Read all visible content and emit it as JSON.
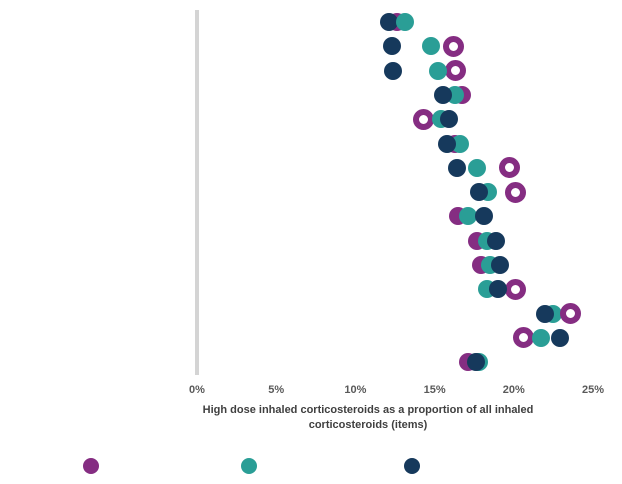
{
  "chart_data": {
    "type": "scatter",
    "variant": "dot-plot-rows",
    "title": "",
    "xlabel_line1": "High dose inhaled corticosteroids as a proportion of all inhaled",
    "xlabel_line2": "corticosteroids (items)",
    "x_axis": {
      "ticks": [
        "0%",
        "5%",
        "10%",
        "15%",
        "20%",
        "25%"
      ],
      "range": [
        0,
        25
      ],
      "zero_gridline": true,
      "gridline_color": "#d4d4d4"
    },
    "y_axis": {
      "row_count": 15,
      "labels_visible": false
    },
    "series_colors": {
      "purple": "#852d82",
      "teal": "#2a9e96",
      "navy": "#16395c"
    },
    "rows": [
      {
        "dots": [
          {
            "series": "purple",
            "value": 12.6,
            "style": "filled"
          },
          {
            "series": "navy",
            "value": 12.1,
            "style": "filled"
          },
          {
            "series": "teal",
            "value": 13.1,
            "style": "filled"
          }
        ]
      },
      {
        "dots": [
          {
            "series": "purple",
            "value": 16.2,
            "style": "ring"
          },
          {
            "series": "teal",
            "value": 14.8,
            "style": "filled"
          },
          {
            "series": "navy",
            "value": 12.3,
            "style": "filled"
          }
        ]
      },
      {
        "dots": [
          {
            "series": "purple",
            "value": 16.3,
            "style": "ring"
          },
          {
            "series": "teal",
            "value": 15.2,
            "style": "filled"
          },
          {
            "series": "navy",
            "value": 12.4,
            "style": "filled"
          }
        ]
      },
      {
        "dots": [
          {
            "series": "purple",
            "value": 16.7,
            "style": "filled"
          },
          {
            "series": "teal",
            "value": 16.3,
            "style": "filled"
          },
          {
            "series": "navy",
            "value": 15.5,
            "style": "filled"
          }
        ]
      },
      {
        "dots": [
          {
            "series": "purple",
            "value": 14.3,
            "style": "ring"
          },
          {
            "series": "teal",
            "value": 15.4,
            "style": "filled"
          },
          {
            "series": "navy",
            "value": 15.9,
            "style": "filled"
          }
        ]
      },
      {
        "dots": [
          {
            "series": "purple",
            "value": 16.3,
            "style": "filled"
          },
          {
            "series": "teal",
            "value": 16.6,
            "style": "filled"
          },
          {
            "series": "navy",
            "value": 15.8,
            "style": "filled"
          }
        ]
      },
      {
        "dots": [
          {
            "series": "purple",
            "value": 19.7,
            "style": "ring"
          },
          {
            "series": "teal",
            "value": 17.7,
            "style": "filled"
          },
          {
            "series": "navy",
            "value": 16.4,
            "style": "filled"
          }
        ]
      },
      {
        "dots": [
          {
            "series": "purple",
            "value": 20.1,
            "style": "ring"
          },
          {
            "series": "teal",
            "value": 18.4,
            "style": "filled"
          },
          {
            "series": "navy",
            "value": 17.8,
            "style": "filled"
          }
        ]
      },
      {
        "dots": [
          {
            "series": "purple",
            "value": 16.5,
            "style": "filled"
          },
          {
            "series": "teal",
            "value": 17.1,
            "style": "filled"
          },
          {
            "series": "navy",
            "value": 18.1,
            "style": "filled"
          }
        ]
      },
      {
        "dots": [
          {
            "series": "purple",
            "value": 17.7,
            "style": "filled"
          },
          {
            "series": "teal",
            "value": 18.3,
            "style": "filled"
          },
          {
            "series": "navy",
            "value": 18.9,
            "style": "filled"
          }
        ]
      },
      {
        "dots": [
          {
            "series": "purple",
            "value": 17.9,
            "style": "filled"
          },
          {
            "series": "teal",
            "value": 18.5,
            "style": "filled"
          },
          {
            "series": "navy",
            "value": 19.1,
            "style": "filled"
          }
        ]
      },
      {
        "dots": [
          {
            "series": "purple",
            "value": 20.1,
            "style": "ring"
          },
          {
            "series": "teal",
            "value": 18.3,
            "style": "filled"
          },
          {
            "series": "navy",
            "value": 19.0,
            "style": "filled"
          }
        ]
      },
      {
        "dots": [
          {
            "series": "teal",
            "value": 22.5,
            "style": "filled"
          },
          {
            "series": "navy",
            "value": 22.0,
            "style": "filled"
          },
          {
            "series": "purple",
            "value": 23.6,
            "style": "ring"
          }
        ]
      },
      {
        "dots": [
          {
            "series": "purple",
            "value": 20.6,
            "style": "ring"
          },
          {
            "series": "teal",
            "value": 21.7,
            "style": "filled"
          },
          {
            "series": "navy",
            "value": 22.9,
            "style": "filled"
          }
        ]
      },
      {
        "dots": [
          {
            "series": "purple",
            "value": 17.1,
            "style": "filled"
          },
          {
            "series": "teal",
            "value": 17.8,
            "style": "filled"
          },
          {
            "series": "navy",
            "value": 17.6,
            "style": "filled"
          }
        ]
      }
    ],
    "legend": {
      "labels_visible": false,
      "items": [
        {
          "name": "purple-series",
          "color": "#852d82"
        },
        {
          "name": "teal-series",
          "color": "#2a9e96"
        },
        {
          "name": "navy-series",
          "color": "#16395c"
        }
      ]
    }
  }
}
